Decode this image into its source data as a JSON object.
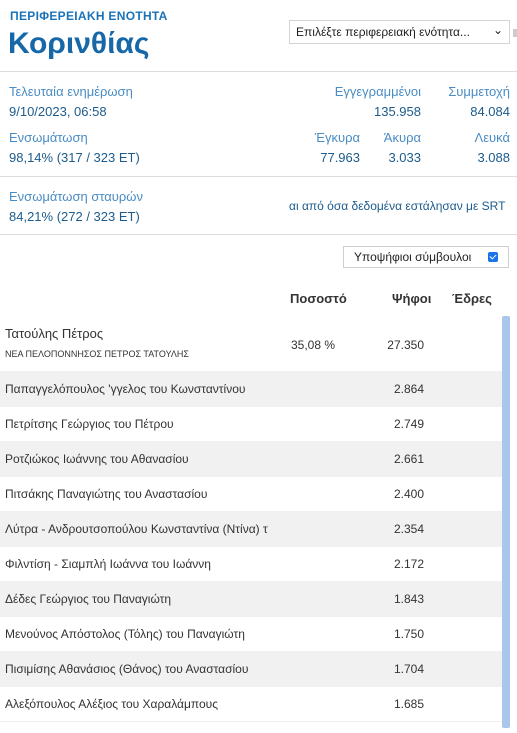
{
  "header": {
    "region_label": "ΠΕΡΙΦΕΡΕΙΑΚΗ ΕΝΟΤΗΤΑ",
    "region_name": "Κορινθίας",
    "select_value": "Επιλέξτε περιφερειακή ενότητα..."
  },
  "stats": {
    "last_update_label": "Τελευταία ενημέρωση",
    "last_update_value": "9/10/2023, 06:58",
    "registered_label": "Εγγεγραμμένοι",
    "registered_value": "135.958",
    "turnout_label": "Συμμετοχή",
    "turnout_value": "84.084",
    "integration_label": "Ενσωμάτωση",
    "integration_value": "98,14% (317 / 323 ΕΤ)",
    "valid_label": "Έγκυρα",
    "valid_value": "77.963",
    "invalid_label": "Άκυρα",
    "invalid_value": "3.033",
    "blank_label": "Λευκά",
    "blank_value": "3.088"
  },
  "crosses": {
    "label": "Ενσωμάτωση σταυρών",
    "value": "84,21% (272 / 323 ΕΤ)",
    "note": "αι από όσα δεδομένα εστάλησαν με SRT"
  },
  "toggle": {
    "label": "Υποψήφιοι σύμβουλοι",
    "checked": true
  },
  "table": {
    "headers": {
      "percent": "Ποσοστό",
      "votes": "Ψήφοι",
      "seats": "Έδρες"
    },
    "leader": {
      "name": "Τατούλης Πέτρος",
      "party": "ΝΕΑ ΠΕΛΟΠΟΝΝΗΣΟΣ ΠΕΤΡΟΣ ΤΑΤΟΥΛΗΣ",
      "percent": "35,08 %",
      "votes": "27.350"
    },
    "rows": [
      {
        "name": "Παπαγγελόπουλος 'γγελος του Κωνσταντίνου",
        "votes": "2.864"
      },
      {
        "name": "Πετρίτσης Γεώργιος του Πέτρου",
        "votes": "2.749"
      },
      {
        "name": "Ροτζιώκος Ιωάννης του Αθανασίου",
        "votes": "2.661"
      },
      {
        "name": "Πιτσάκης Παναγιώτης του Αναστασίου",
        "votes": "2.400"
      },
      {
        "name": "Λύτρα - Ανδρουτσοπούλου Κωνσταντίνα (Ντίνα) τ",
        "votes": "2.354"
      },
      {
        "name": "Φιλντίση - Σιαμπλή Ιωάννα του Ιωάννη",
        "votes": "2.172"
      },
      {
        "name": "Δέδες Γεώργιος του Παναγιώτη",
        "votes": "1.843"
      },
      {
        "name": "Μενούνος Απόστολος (Τόλης) του Παναγιώτη",
        "votes": "1.750"
      },
      {
        "name": "Πισιμίσης Αθανάσιος (Θάνος) του Αναστασίου",
        "votes": "1.704"
      },
      {
        "name": "Αλεξόπουλος Αλέξιος του Χαραλάμπους",
        "votes": "1.685"
      }
    ]
  },
  "colors": {
    "accent": "#1668a8",
    "label_blue": "#4a8cc4",
    "checkbox": "#1a73e8",
    "scrollbar": "#aac6ea"
  }
}
